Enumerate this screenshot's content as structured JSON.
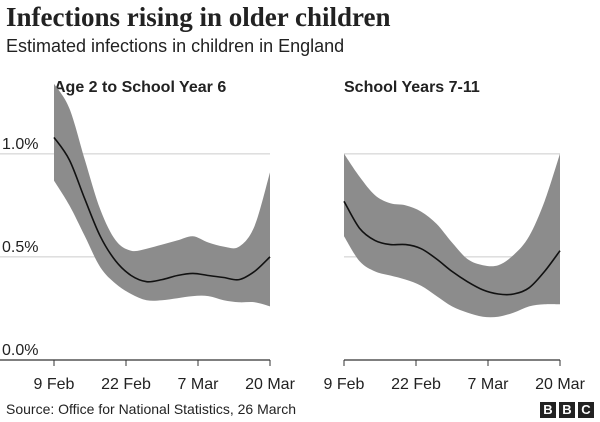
{
  "title": "Infections rising in older children",
  "subtitle": "Estimated infections in children in England",
  "source": "Source: Office for National Statistics, 26 March",
  "logo": [
    "B",
    "B",
    "C"
  ],
  "colors": {
    "band": "#8c8c8c",
    "line": "#111111",
    "grid": "#cccccc",
    "text": "#222222"
  },
  "chart_data": [
    {
      "type": "area",
      "title": "Age 2 to School Year 6",
      "xlabel": "",
      "ylabel": "",
      "x_ticks": [
        "9 Feb",
        "22 Feb",
        "7 Mar",
        "20 Mar"
      ],
      "y_ticks": [
        "0.0%",
        "0.5%",
        "1.0%"
      ],
      "ylim": [
        0,
        1.3
      ],
      "grid": true,
      "x": [
        0,
        3,
        6,
        9,
        12,
        15,
        18,
        21,
        24,
        27,
        30,
        33,
        36,
        39,
        42
      ],
      "series": [
        {
          "values": [
            1.08,
            0.97,
            0.78,
            0.6,
            0.48,
            0.41,
            0.38,
            0.39,
            0.41,
            0.42,
            0.41,
            0.4,
            0.39,
            0.43,
            0.5
          ]
        }
      ],
      "upper": [
        1.34,
        1.22,
        0.97,
        0.73,
        0.58,
        0.53,
        0.54,
        0.56,
        0.58,
        0.6,
        0.57,
        0.55,
        0.55,
        0.65,
        0.91
      ],
      "lower": [
        0.87,
        0.75,
        0.6,
        0.45,
        0.37,
        0.32,
        0.29,
        0.29,
        0.3,
        0.31,
        0.31,
        0.29,
        0.28,
        0.28,
        0.26
      ]
    },
    {
      "type": "area",
      "title": "School Years 7-11",
      "xlabel": "",
      "ylabel": "",
      "x_ticks": [
        "9 Feb",
        "22 Feb",
        "7 Mar",
        "20 Mar"
      ],
      "y_ticks": [
        "0.0%",
        "0.5%",
        "1.0%"
      ],
      "ylim": [
        0,
        1.3
      ],
      "grid": true,
      "x": [
        0,
        3,
        6,
        9,
        12,
        15,
        18,
        21,
        24,
        27,
        30,
        33,
        36,
        39,
        42
      ],
      "series": [
        {
          "values": [
            0.77,
            0.64,
            0.58,
            0.56,
            0.56,
            0.54,
            0.49,
            0.43,
            0.38,
            0.34,
            0.32,
            0.32,
            0.35,
            0.43,
            0.53
          ]
        }
      ],
      "upper": [
        1.0,
        0.89,
        0.8,
        0.76,
        0.75,
        0.72,
        0.66,
        0.57,
        0.49,
        0.46,
        0.46,
        0.51,
        0.6,
        0.77,
        1.0
      ],
      "lower": [
        0.6,
        0.48,
        0.43,
        0.41,
        0.39,
        0.36,
        0.31,
        0.26,
        0.23,
        0.21,
        0.21,
        0.23,
        0.26,
        0.27,
        0.27
      ]
    }
  ]
}
